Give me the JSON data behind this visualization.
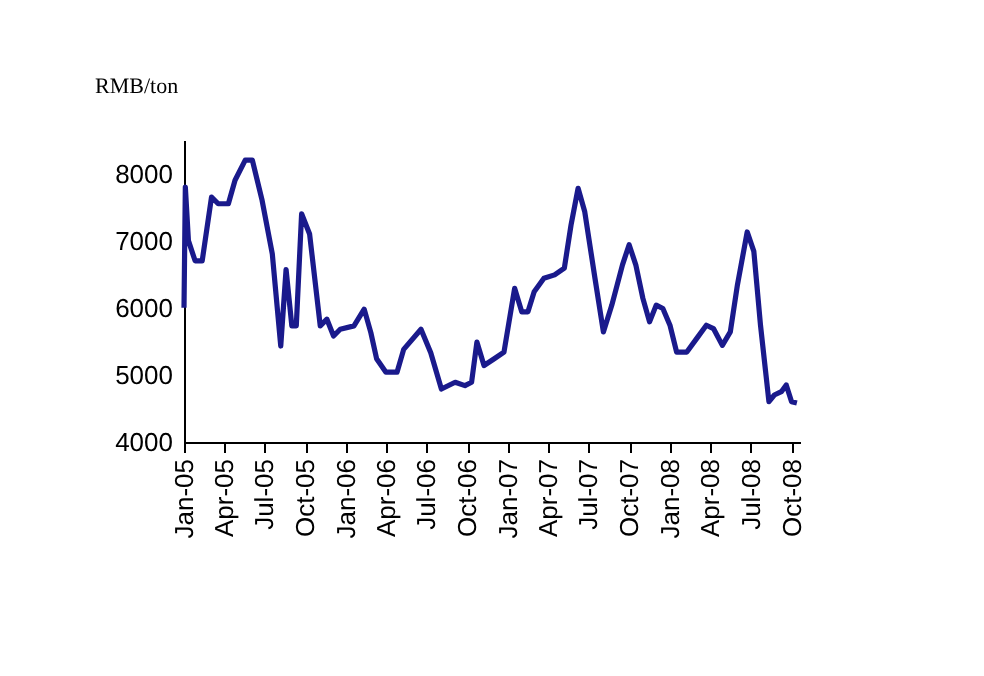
{
  "chart_data": {
    "type": "line",
    "ylabel": "RMB/ton",
    "x": [
      "2005-01-01",
      "2005-01-04",
      "2005-01-11",
      "2005-01-26",
      "2005-02-11",
      "2005-03-04",
      "2005-03-19",
      "2005-04-11",
      "2005-04-26",
      "2005-05-19",
      "2005-06-04",
      "2005-06-26",
      "2005-07-19",
      "2005-08-07",
      "2005-08-19",
      "2005-09-01",
      "2005-09-11",
      "2005-09-23",
      "2005-10-11",
      "2005-11-04",
      "2005-11-19",
      "2005-12-04",
      "2005-12-19",
      "2006-01-19",
      "2006-02-11",
      "2006-02-26",
      "2006-03-11",
      "2006-04-01",
      "2006-04-26",
      "2006-05-11",
      "2006-06-19",
      "2006-07-11",
      "2006-08-04",
      "2006-09-04",
      "2006-09-26",
      "2006-10-11",
      "2006-10-23",
      "2006-11-08",
      "2006-12-01",
      "2006-12-23",
      "2007-01-16",
      "2007-02-01",
      "2007-02-15",
      "2007-03-01",
      "2007-03-23",
      "2007-04-16",
      "2007-05-08",
      "2007-05-23",
      "2007-06-08",
      "2007-06-23",
      "2007-07-16",
      "2007-08-04",
      "2007-08-23",
      "2007-09-16",
      "2007-10-01",
      "2007-10-16",
      "2007-11-01",
      "2007-11-16",
      "2007-12-01",
      "2007-12-16",
      "2008-01-01",
      "2008-01-16",
      "2008-02-08",
      "2008-03-01",
      "2008-03-23",
      "2008-04-08",
      "2008-04-28",
      "2008-05-16",
      "2008-06-01",
      "2008-06-23",
      "2008-07-08",
      "2008-07-23",
      "2008-08-11",
      "2008-08-23",
      "2008-09-08",
      "2008-09-19",
      "2008-10-01",
      "2008-10-13"
    ],
    "series": [
      {
        "color": "#1a1a8c",
        "values": [
          6000,
          7800,
          7000,
          6700,
          6700,
          7650,
          7550,
          7550,
          7900,
          8200,
          8200,
          7600,
          6800,
          5430,
          6570,
          5730,
          5730,
          7400,
          7100,
          5730,
          5830,
          5580,
          5680,
          5730,
          5980,
          5630,
          5240,
          5040,
          5040,
          5380,
          5680,
          5330,
          4790,
          4890,
          4840,
          4890,
          5490,
          5140,
          5240,
          5340,
          6290,
          5940,
          5940,
          6240,
          6440,
          6490,
          6590,
          7230,
          7780,
          7430,
          6440,
          5640,
          6040,
          6640,
          6940,
          6640,
          6140,
          5790,
          6040,
          5990,
          5740,
          5340,
          5340,
          5540,
          5740,
          5690,
          5440,
          5640,
          6340,
          7130,
          6840,
          5740,
          4600,
          4700,
          4750,
          4850,
          4600,
          4580
        ]
      }
    ],
    "xlim": [
      "2005-01-01",
      "2008-10-20"
    ],
    "xticks": [
      {
        "value": "2005-01-01",
        "label": "Jan-05"
      },
      {
        "value": "2005-04-01",
        "label": "Apr-05"
      },
      {
        "value": "2005-07-01",
        "label": "Jul-05"
      },
      {
        "value": "2005-10-01",
        "label": "Oct-05"
      },
      {
        "value": "2006-01-01",
        "label": "Jan-06"
      },
      {
        "value": "2006-04-01",
        "label": "Apr-06"
      },
      {
        "value": "2006-07-01",
        "label": "Jul-06"
      },
      {
        "value": "2006-10-01",
        "label": "Oct-06"
      },
      {
        "value": "2007-01-01",
        "label": "Jan-07"
      },
      {
        "value": "2007-04-01",
        "label": "Apr-07"
      },
      {
        "value": "2007-07-01",
        "label": "Jul-07"
      },
      {
        "value": "2007-10-01",
        "label": "Oct-07"
      },
      {
        "value": "2008-01-01",
        "label": "Jan-08"
      },
      {
        "value": "2008-04-01",
        "label": "Apr-08"
      },
      {
        "value": "2008-07-01",
        "label": "Jul-08"
      },
      {
        "value": "2008-10-01",
        "label": "Oct-08"
      }
    ],
    "ylim": [
      4000,
      8500
    ],
    "yticks": [
      4000,
      5000,
      6000,
      7000,
      8000
    ],
    "grid": false,
    "marker": "none",
    "line_style": "solid"
  }
}
